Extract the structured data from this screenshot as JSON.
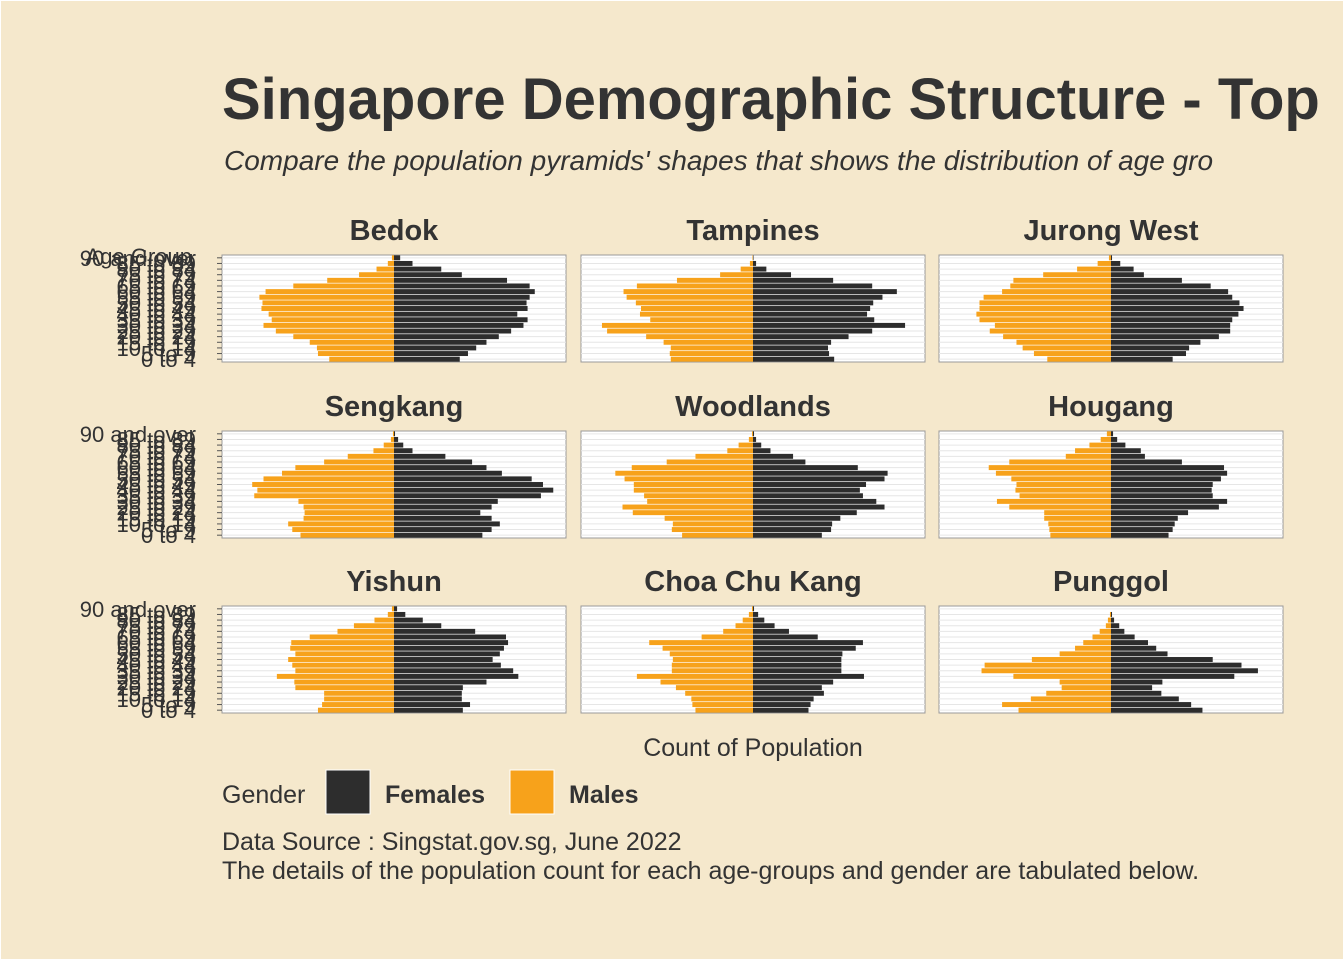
{
  "title": "Singapore Demographic Structure - Top",
  "subtitle": "Compare the population pyramids' shapes that shows the distribution of age gro",
  "caption_lines": [
    "Data Source : Singstat.gov.sg, June 2022",
    "The details of the population count for each age-groups and gender are tabulated below."
  ],
  "legend": {
    "title": "Gender",
    "items": [
      {
        "label": "Females",
        "color": "#2d2d2d"
      },
      {
        "label": "Males",
        "color": "#f7a21b"
      }
    ]
  },
  "chart_data": {
    "type": "bar",
    "orientation": "horizontal-pyramid",
    "ylabel": "Age Group",
    "xlabel": "Count of Population",
    "categories": [
      "0 to 4",
      "5 to 9",
      "10 to 14",
      "15 to 19",
      "20 to 24",
      "25 to 29",
      "30 to 34",
      "35 to 39",
      "40 to 44",
      "45 to 49",
      "50 to 54",
      "55 to 59",
      "60 to 64",
      "65 to 69",
      "70 to 74",
      "75 to 79",
      "80 to 84",
      "85 to 89",
      "90 and over"
    ],
    "colors": {
      "Females": "#2d2d2d",
      "Males": "#f7a21b"
    },
    "grid": true,
    "legend_position": "bottom",
    "facets": [
      {
        "name": "Bedok",
        "females": [
          6400,
          7200,
          8000,
          9000,
          10200,
          11400,
          12600,
          13000,
          12000,
          13000,
          12900,
          13200,
          13700,
          13200,
          11000,
          6600,
          4600,
          1800,
          600
        ],
        "males": [
          6300,
          7400,
          7500,
          8200,
          9800,
          11500,
          12700,
          11900,
          12200,
          12900,
          12800,
          13100,
          12500,
          9800,
          6500,
          3400,
          1700,
          600,
          200
        ]
      },
      {
        "name": "Tampines",
        "females": [
          7900,
          7400,
          7300,
          7600,
          9300,
          11600,
          14800,
          11800,
          11100,
          11400,
          11700,
          12600,
          14000,
          11600,
          7800,
          3700,
          1300,
          300,
          50
        ],
        "males": [
          8000,
          8100,
          8000,
          8700,
          10400,
          14200,
          14700,
          10000,
          11000,
          10900,
          11400,
          12300,
          12600,
          11300,
          7400,
          3200,
          1200,
          300,
          50
        ]
      },
      {
        "name": "Jurong West",
        "females": [
          6000,
          7300,
          7600,
          8700,
          10500,
          11600,
          11600,
          11800,
          12400,
          12900,
          12500,
          11800,
          11400,
          9700,
          6900,
          3200,
          2200,
          900,
          100
        ],
        "males": [
          6200,
          7500,
          8600,
          9200,
          10500,
          11800,
          11300,
          12800,
          13100,
          12800,
          12800,
          12400,
          10600,
          9800,
          9500,
          6600,
          3300,
          1300,
          200
        ]
      },
      {
        "name": "Sengkang",
        "females": [
          8600,
          9500,
          10300,
          9500,
          8400,
          9500,
          10100,
          14300,
          15500,
          14500,
          13400,
          10500,
          9000,
          7600,
          5000,
          1800,
          900,
          400,
          100
        ],
        "males": [
          9100,
          9900,
          10300,
          8800,
          8700,
          8800,
          9300,
          13600,
          13300,
          13800,
          12700,
          10900,
          9600,
          6800,
          4500,
          2000,
          1000,
          300,
          100
        ]
      },
      {
        "name": "Woodlands",
        "females": [
          6700,
          7600,
          7700,
          8500,
          10100,
          12800,
          12000,
          10700,
          10400,
          11000,
          12800,
          13100,
          10200,
          5100,
          3900,
          1700,
          800,
          300,
          100
        ],
        "males": [
          6900,
          7900,
          7800,
          8600,
          11700,
          12700,
          10300,
          10600,
          11600,
          11600,
          12500,
          13400,
          11800,
          8400,
          5600,
          2500,
          1400,
          400,
          100
        ]
      },
      {
        "name": "Hougang",
        "females": [
          5600,
          6000,
          6200,
          6500,
          7500,
          10500,
          11300,
          9900,
          9800,
          9900,
          10700,
          11300,
          11000,
          6900,
          3300,
          2900,
          1400,
          600,
          200
        ],
        "males": [
          5900,
          6000,
          6100,
          6500,
          6500,
          9900,
          11100,
          8900,
          9300,
          9200,
          9700,
          11200,
          11900,
          9900,
          4400,
          3500,
          2100,
          1000,
          400
        ]
      },
      {
        "name": "Yishun",
        "females": [
          6700,
          7400,
          6600,
          6600,
          6700,
          9000,
          12100,
          11600,
          10400,
          9600,
          10300,
          10700,
          11100,
          10900,
          7900,
          4600,
          2800,
          1100,
          300
        ],
        "males": [
          7400,
          7000,
          6800,
          6800,
          9600,
          9700,
          11400,
          9600,
          9900,
          10300,
          9600,
          10100,
          10000,
          8200,
          5500,
          3900,
          1900,
          600,
          200
        ]
      },
      {
        "name": "Choa Chu Kang",
        "females": [
          5400,
          5600,
          5900,
          6900,
          6700,
          7800,
          10800,
          8600,
          8600,
          8600,
          8700,
          10000,
          10700,
          6300,
          3500,
          2100,
          1100,
          500,
          100
        ],
        "males": [
          5600,
          5900,
          6000,
          6600,
          7500,
          9000,
          11300,
          7900,
          7900,
          7800,
          8100,
          8800,
          10100,
          5000,
          2900,
          1700,
          1000,
          400,
          100
        ]
      },
      {
        "name": "Punggol",
        "females": [
          8900,
          7800,
          6600,
          4900,
          4000,
          5000,
          12000,
          14300,
          12700,
          9900,
          5500,
          4400,
          3600,
          2300,
          1300,
          800,
          300,
          100,
          0
        ],
        "males": [
          9000,
          10600,
          7800,
          6300,
          4800,
          5000,
          9500,
          12600,
          12300,
          7700,
          5000,
          3500,
          2700,
          1800,
          1100,
          500,
          300,
          100,
          0
        ]
      }
    ]
  }
}
